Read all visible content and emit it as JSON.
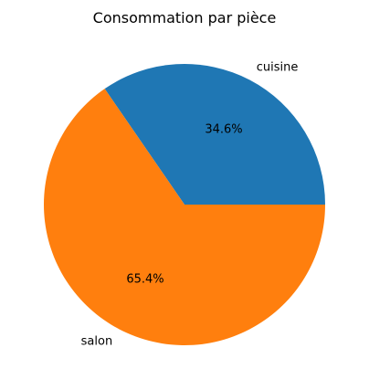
{
  "chart_data": {
    "type": "pie",
    "title": "Consommation par pièce",
    "slices": [
      {
        "label": "cuisine",
        "value": 34.6,
        "pct_label": "34.6%",
        "color": "#1f77b4"
      },
      {
        "label": "salon",
        "value": 65.4,
        "pct_label": "65.4%",
        "color": "#ff7f0e"
      }
    ],
    "start_angle": 0,
    "direction": "counterclockwise"
  }
}
